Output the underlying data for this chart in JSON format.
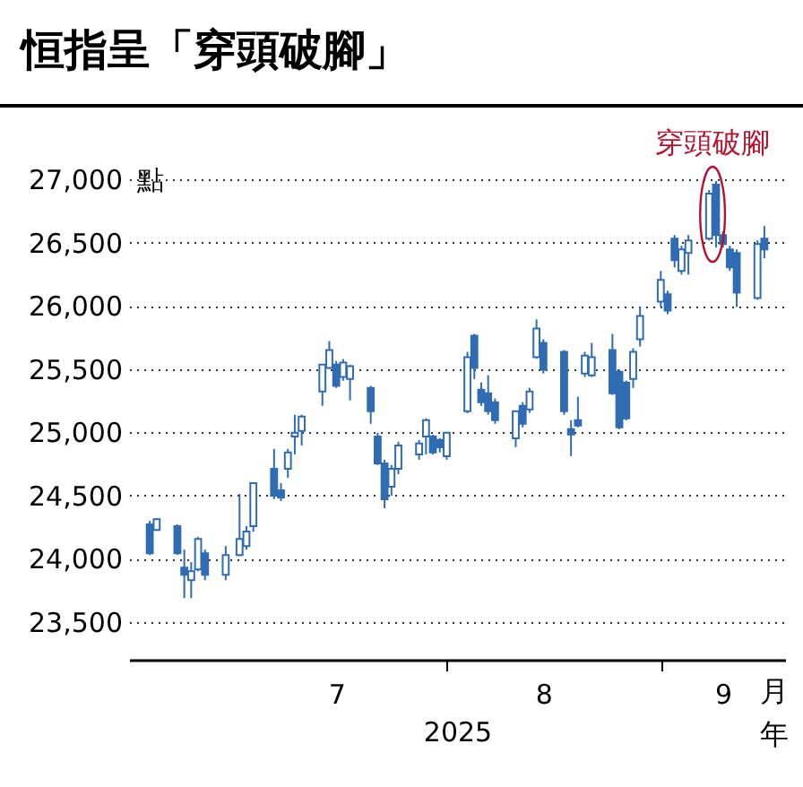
{
  "chart_data": {
    "type": "candlestick",
    "title": "恒指呈「穿頭破腳」",
    "xlabel": "2025",
    "ylabel": "點",
    "x": [
      "2025-06-19",
      "2025-06-20",
      "2025-06-23",
      "2025-06-24",
      "2025-06-25",
      "2025-06-26",
      "2025-06-27",
      "2025-06-30",
      "2025-07-02",
      "2025-07-03",
      "2025-07-04",
      "2025-07-07",
      "2025-07-08",
      "2025-07-09",
      "2025-07-10",
      "2025-07-11",
      "2025-07-14",
      "2025-07-15",
      "2025-07-16",
      "2025-07-17",
      "2025-07-18",
      "2025-07-21",
      "2025-07-22",
      "2025-07-23",
      "2025-07-24",
      "2025-07-25",
      "2025-07-28",
      "2025-07-29",
      "2025-07-30",
      "2025-07-31",
      "2025-08-01",
      "2025-08-04",
      "2025-08-05",
      "2025-08-06",
      "2025-08-07",
      "2025-08-08",
      "2025-08-11",
      "2025-08-12",
      "2025-08-13",
      "2025-08-14",
      "2025-08-15",
      "2025-08-18",
      "2025-08-19",
      "2025-08-20",
      "2025-08-21",
      "2025-08-22",
      "2025-08-25",
      "2025-08-26",
      "2025-08-27",
      "2025-08-28",
      "2025-08-29",
      "2025-09-01",
      "2025-09-02",
      "2025-09-03",
      "2025-09-04",
      "2025-09-05",
      "2025-09-08",
      "2025-09-09",
      "2025-09-10",
      "2025-09-11",
      "2025-09-12",
      "2025-09-15",
      "2025-09-16"
    ],
    "ohlc": [
      [
        24270,
        24298,
        24028,
        24042
      ],
      [
        24227,
        24320,
        24220,
        24312
      ],
      [
        24256,
        24270,
        24030,
        24042
      ],
      [
        23928,
        24071,
        23687,
        23872
      ],
      [
        23829,
        23971,
        23687,
        23900
      ],
      [
        23914,
        24170,
        23900,
        24156
      ],
      [
        24042,
        24071,
        23829,
        23872
      ],
      [
        23872,
        24099,
        23829,
        24028
      ],
      [
        24028,
        24511,
        24020,
        24156
      ],
      [
        24099,
        24256,
        24071,
        24213
      ],
      [
        24256,
        24600,
        24213,
        24597
      ],
      [
        24710,
        24867,
        24470,
        24497
      ],
      [
        24540,
        24597,
        24455,
        24483
      ],
      [
        24710,
        24867,
        24639,
        24839
      ],
      [
        24966,
        25137,
        24824,
        24995
      ],
      [
        25009,
        25137,
        24895,
        25123
      ],
      [
        25322,
        25540,
        25208,
        25535
      ],
      [
        25507,
        25720,
        25500,
        25649
      ],
      [
        25535,
        25563,
        25350,
        25365
      ],
      [
        25436,
        25578,
        25407,
        25550
      ],
      [
        25421,
        25530,
        25251,
        25521
      ],
      [
        25350,
        25365,
        25066,
        25166
      ],
      [
        24966,
        24995,
        24740,
        24753
      ],
      [
        24753,
        24782,
        24398,
        24469
      ],
      [
        24568,
        24740,
        24497,
        24710
      ],
      [
        24710,
        24924,
        24668,
        24895
      ],
      [
        24824,
        24938,
        24782,
        24910
      ],
      [
        24966,
        25109,
        24824,
        25094
      ],
      [
        24966,
        24980,
        24824,
        24839
      ],
      [
        24938,
        24952,
        24839,
        24881
      ],
      [
        24810,
        25000,
        24782,
        24995
      ],
      [
        25166,
        25635,
        25150,
        25592
      ],
      [
        25763,
        25777,
        25421,
        25507
      ],
      [
        25336,
        25393,
        25208,
        25237
      ],
      [
        25308,
        25450,
        25137,
        25166
      ],
      [
        25237,
        25265,
        25066,
        25094
      ],
      [
        24952,
        25170,
        24881,
        25166
      ],
      [
        25208,
        25237,
        25038,
        25066
      ],
      [
        25180,
        25350,
        25152,
        25322
      ],
      [
        25592,
        25891,
        25580,
        25820
      ],
      [
        25706,
        25734,
        25464,
        25493
      ],
      [
        25635,
        25649,
        25137,
        25166
      ],
      [
        25023,
        25094,
        24810,
        24981
      ],
      [
        25094,
        25280,
        25038,
        25052
      ],
      [
        25464,
        25635,
        25436,
        25606
      ],
      [
        25450,
        25706,
        25436,
        25592
      ],
      [
        25649,
        25777,
        25294,
        25308
      ],
      [
        25478,
        25493,
        25024,
        25038
      ],
      [
        25393,
        25407,
        25094,
        25109
      ],
      [
        25421,
        25663,
        25350,
        25635
      ],
      [
        25734,
        25990,
        25677,
        25919
      ],
      [
        26033,
        26275,
        25990,
        26204
      ],
      [
        26090,
        26118,
        25933,
        25962
      ],
      [
        26531,
        26559,
        26303,
        26360
      ],
      [
        26275,
        26474,
        26246,
        26445
      ],
      [
        26417,
        26559,
        26246,
        26516
      ],
      [
        26531,
        26915,
        26516,
        26886
      ],
      [
        26957,
        26986,
        26460,
        26559
      ],
      [
        26559,
        26588,
        26460,
        26488
      ],
      [
        26445,
        26474,
        26275,
        26303
      ],
      [
        26417,
        26445,
        25990,
        26104
      ],
      [
        26061,
        26516,
        26047,
        26488
      ],
      [
        26531,
        26630,
        26374,
        26445
      ]
    ],
    "color": "#2f6cb3",
    "xlim": [
      "2025-06-16",
      "2025-09-19"
    ],
    "xticks": [
      {
        "value": "2025-07-16",
        "label": "7"
      },
      {
        "value": "2025-08-01",
        "label": null
      },
      {
        "value": "2025-08-15",
        "label": "8"
      },
      {
        "value": "2025-09-01",
        "label": null
      },
      {
        "value": "2025-09-10",
        "label": "9"
      }
    ],
    "ylim": [
      23200,
      27000
    ],
    "yticks": [
      {
        "value": 23500,
        "label": "23,500"
      },
      {
        "value": 24000,
        "label": "24,000"
      },
      {
        "value": 24500,
        "label": "24,500"
      },
      {
        "value": 25000,
        "label": "25,000"
      },
      {
        "value": 25500,
        "label": "25,500"
      },
      {
        "value": 26000,
        "label": "26,000"
      },
      {
        "value": 26500,
        "label": "26,500"
      },
      {
        "value": 27000,
        "label": "27,000"
      }
    ],
    "grid": "y",
    "annotations": [
      "穿頭破腳",
      "月",
      "年"
    ]
  }
}
